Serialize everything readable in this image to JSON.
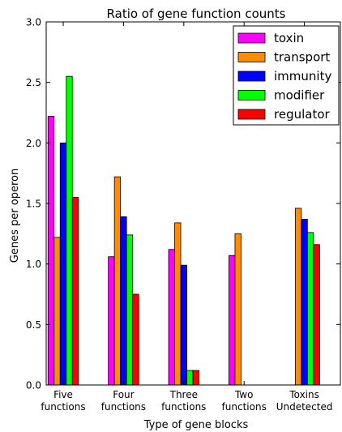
{
  "chart_data": {
    "type": "bar",
    "title": "Ratio of gene function counts",
    "xlabel": "Type of gene blocks",
    "ylabel": "Genes per operon",
    "ylim": [
      0,
      3.0
    ],
    "yticks": [
      "0.0",
      "0.5",
      "1.0",
      "1.5",
      "2.0",
      "2.5",
      "3.0"
    ],
    "categories": [
      [
        "Five",
        "functions"
      ],
      [
        "Four",
        "functions"
      ],
      [
        "Three",
        "functions"
      ],
      [
        "Two",
        "functions"
      ],
      [
        "Toxins",
        "Undetected"
      ]
    ],
    "legend_position": "top-right",
    "grid": false,
    "series": [
      {
        "name": "toxin",
        "color": "#ff00ff",
        "values": [
          2.22,
          1.06,
          1.12,
          1.07,
          0
        ]
      },
      {
        "name": "transport",
        "color": "#ff8c00",
        "values": [
          1.22,
          1.72,
          1.34,
          1.25,
          1.46
        ]
      },
      {
        "name": "immunity",
        "color": "#0000ff",
        "values": [
          2.0,
          1.39,
          0.99,
          0,
          1.37
        ]
      },
      {
        "name": "modifier",
        "color": "#00ff00",
        "values": [
          2.55,
          1.24,
          0.12,
          0,
          1.26
        ]
      },
      {
        "name": "regulator",
        "color": "#ff0000",
        "values": [
          1.55,
          0.75,
          0.12,
          0,
          1.16
        ]
      }
    ]
  }
}
